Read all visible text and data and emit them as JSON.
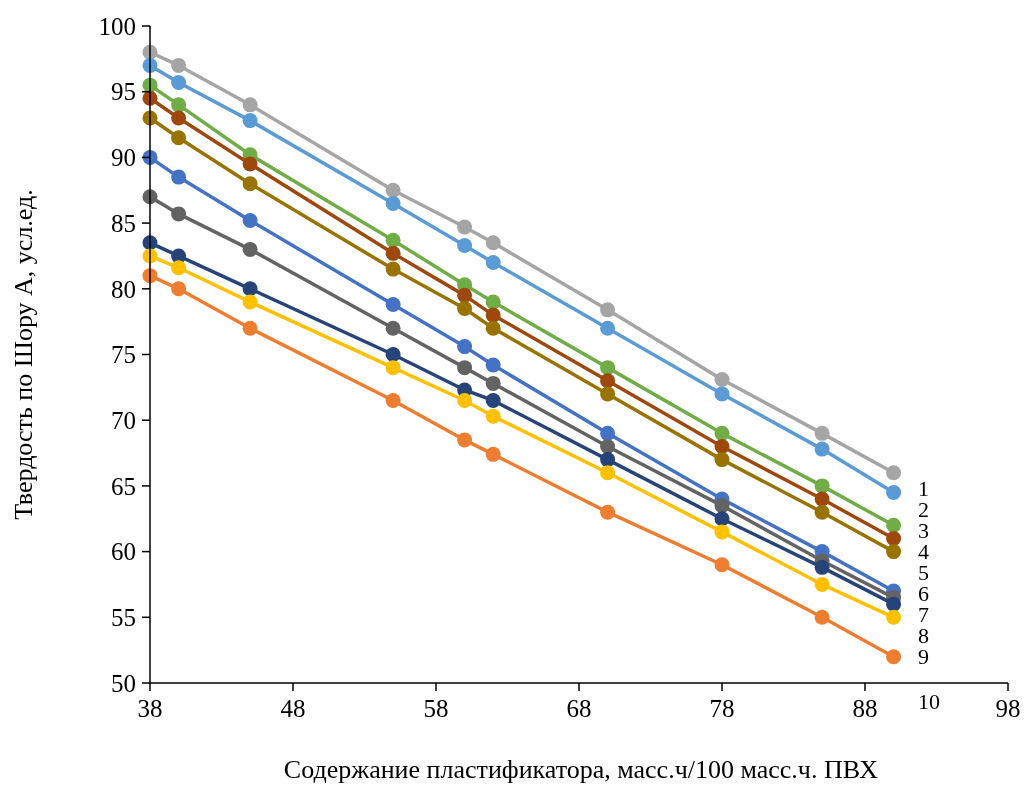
{
  "chart_data": {
    "type": "line",
    "xlabel": "Содержание пластификатора, масс.ч/100 масс.ч. ПВХ",
    "ylabel": "Твердость по Шору А, усл.ед.",
    "x": [
      38,
      40,
      45,
      55,
      60,
      62,
      70,
      78,
      85,
      90
    ],
    "xlim": [
      38,
      98
    ],
    "xticks": [
      38,
      48,
      58,
      68,
      78,
      88,
      98
    ],
    "ylim": [
      50,
      100
    ],
    "yticks": [
      50,
      55,
      60,
      65,
      70,
      75,
      80,
      85,
      90,
      95,
      100
    ],
    "grid": false,
    "marker": "circle",
    "line_style": "solid",
    "annotations": [
      "1",
      "2",
      "3",
      "4",
      "5",
      "6",
      "7",
      "8",
      "9",
      "10"
    ],
    "series": [
      {
        "color": "#a5a5a5",
        "values": [
          98,
          97,
          94,
          87.5,
          84.7,
          83.5,
          78.4,
          73.1,
          69,
          66
        ]
      },
      {
        "color": "#5b9bd5",
        "values": [
          97,
          95.7,
          92.8,
          86.5,
          83.3,
          82,
          77,
          72,
          67.8,
          64.5
        ]
      },
      {
        "color": "#70ad47",
        "values": [
          95.5,
          94,
          90.2,
          83.7,
          80.3,
          79,
          74,
          69,
          65,
          62
        ]
      },
      {
        "color": "#9e480e",
        "values": [
          94.5,
          93,
          89.5,
          82.7,
          79.5,
          78,
          73,
          68,
          64,
          61
        ]
      },
      {
        "color": "#997300",
        "values": [
          93,
          91.5,
          88,
          81.5,
          78.5,
          77,
          72,
          67,
          63,
          60
        ]
      },
      {
        "color": "#4472c4",
        "values": [
          90,
          88.5,
          85.2,
          78.8,
          75.6,
          74.2,
          69,
          64,
          60,
          57
        ]
      },
      {
        "color": "#636363",
        "values": [
          87,
          85.7,
          83,
          77,
          74,
          72.8,
          68,
          63.5,
          59.3,
          56.5
        ]
      },
      {
        "color": "#264478",
        "values": [
          83.5,
          82.5,
          80,
          75,
          72.3,
          71.5,
          67,
          62.5,
          58.8,
          56
        ]
      },
      {
        "color": "#ffc000",
        "values": [
          82.5,
          81.6,
          79,
          74,
          71.5,
          70.3,
          66,
          61.5,
          57.5,
          55
        ]
      },
      {
        "color": "#ed7d31",
        "values": [
          81,
          80,
          77,
          71.5,
          68.5,
          67.4,
          63,
          59,
          55,
          52
        ]
      }
    ]
  }
}
